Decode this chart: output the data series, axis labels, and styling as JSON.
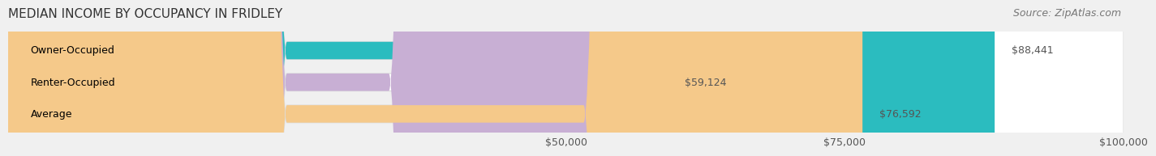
{
  "title": "MEDIAN INCOME BY OCCUPANCY IN FRIDLEY",
  "source": "Source: ZipAtlas.com",
  "categories": [
    "Owner-Occupied",
    "Renter-Occupied",
    "Average"
  ],
  "values": [
    88441,
    59124,
    76592
  ],
  "labels": [
    "$88,441",
    "$59,124",
    "$76,592"
  ],
  "bar_colors": [
    "#2bbcbf",
    "#c8afd4",
    "#f5c98a"
  ],
  "bar_edge_colors": [
    "#2bbcbf",
    "#c8afd4",
    "#f5c98a"
  ],
  "xlim": [
    0,
    100000
  ],
  "xticks": [
    50000,
    75000,
    100000
  ],
  "xticklabels": [
    "$50,000",
    "$75,000",
    "$100,000"
  ],
  "background_color": "#f0f0f0",
  "bar_bg_color": "#f0f0f0",
  "title_fontsize": 11,
  "source_fontsize": 9,
  "label_fontsize": 9,
  "category_fontsize": 9,
  "tick_fontsize": 9
}
